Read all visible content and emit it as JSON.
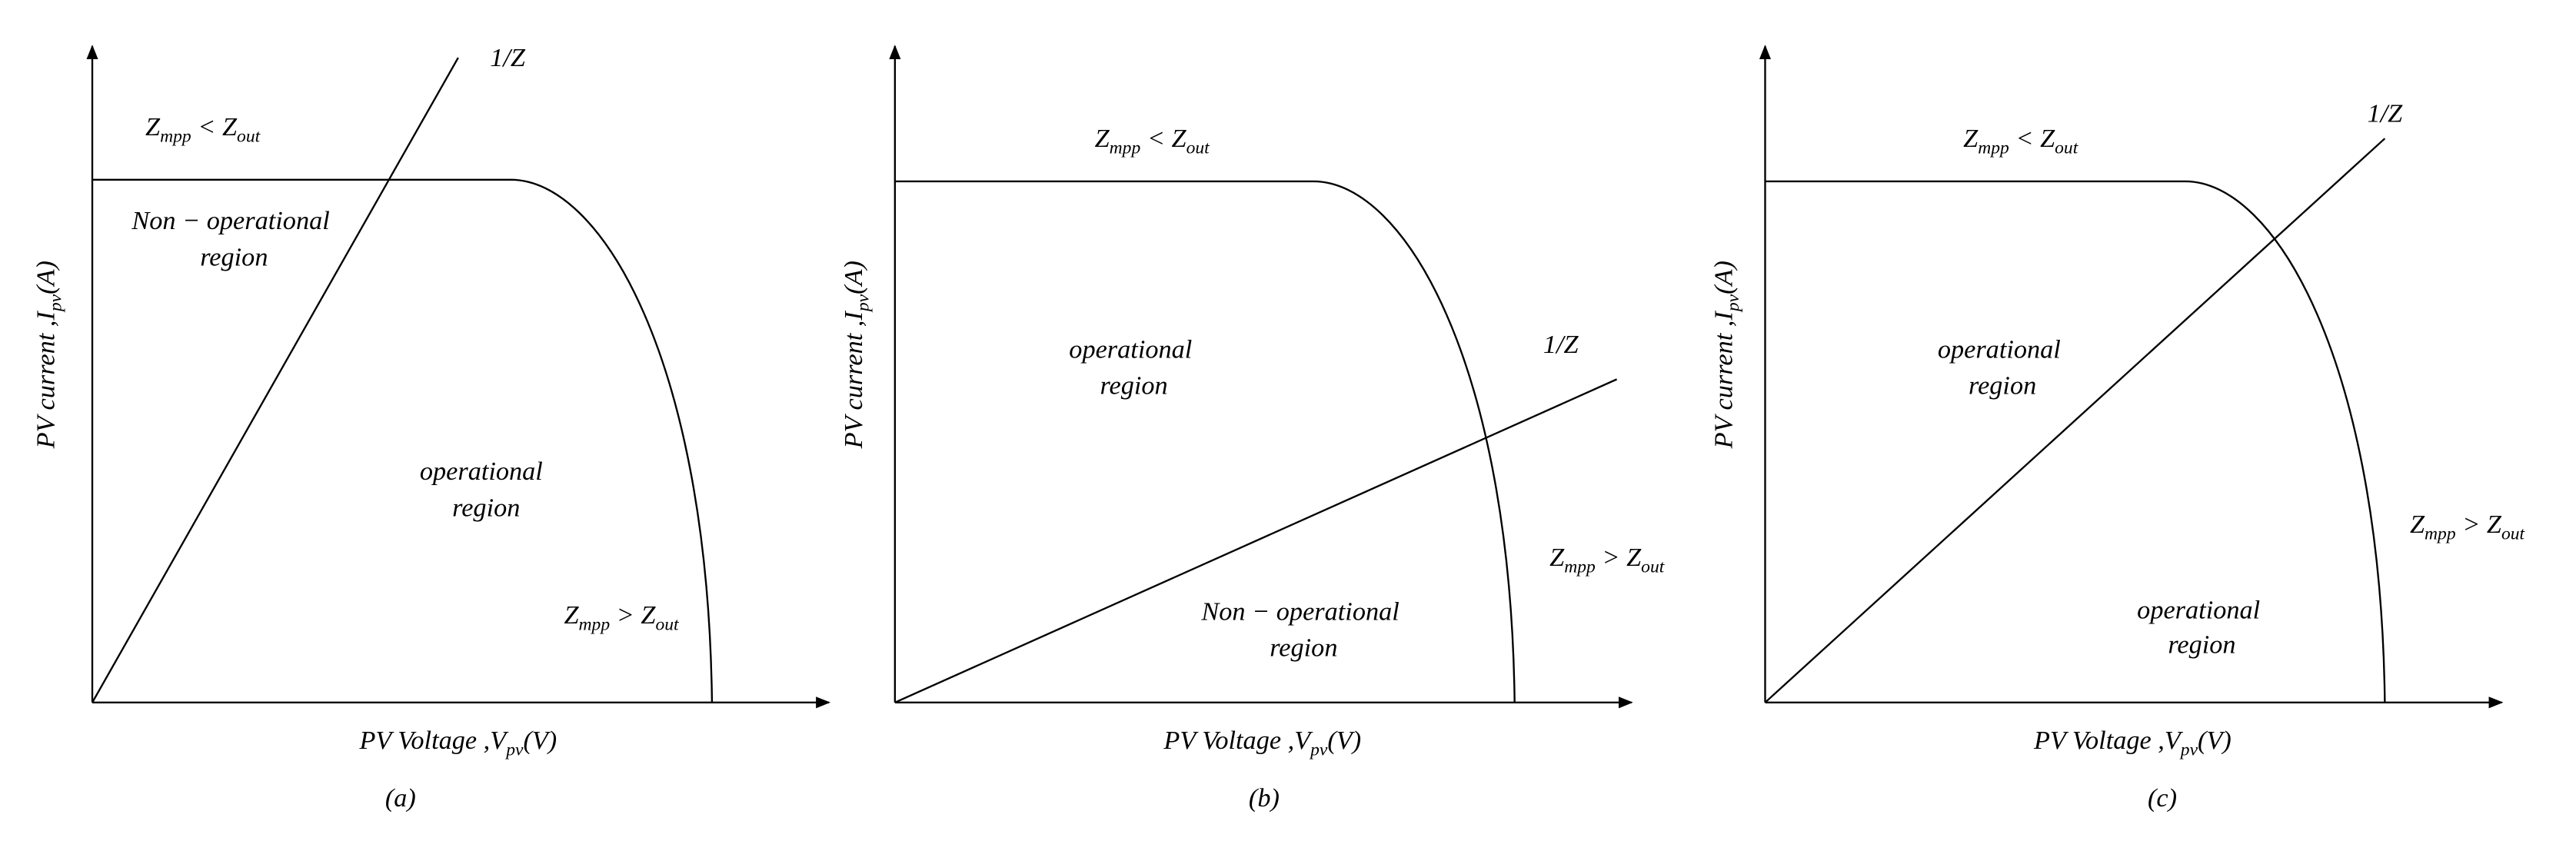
{
  "panels": [
    {
      "caption": "(a)",
      "x_label": [
        "PV Voltage ,V",
        "pv",
        "(V)"
      ],
      "y_label": [
        "PV current ,I",
        "pv",
        "(A)"
      ],
      "labels": [
        [
          "1/Z"
        ],
        [
          "Z",
          "mpp",
          " < Z",
          "out"
        ],
        [
          "Non − operational"
        ],
        [
          "region"
        ],
        [
          "operational"
        ],
        [
          "region"
        ],
        [
          "Z",
          "mpp",
          " > Z",
          "out"
        ]
      ]
    },
    {
      "caption": "(b)",
      "x_label": [
        "PV Voltage ,V",
        "pv",
        "(V)"
      ],
      "y_label": [
        "PV current ,I",
        "pv",
        "(A)"
      ],
      "labels": [
        [
          "1/Z"
        ],
        [
          "Z",
          "mpp",
          " < Z",
          "out"
        ],
        [
          "operational"
        ],
        [
          "region"
        ],
        [
          "Non − operational"
        ],
        [
          "region"
        ],
        [
          "Z",
          "mpp",
          " > Z",
          "out"
        ]
      ]
    },
    {
      "caption": "(c)",
      "x_label": [
        "PV Voltage ,V",
        "pv",
        "(V)"
      ],
      "y_label": [
        "PV current ,I",
        "pv",
        "(A)"
      ],
      "labels": [
        [
          "1/Z"
        ],
        [
          "Z",
          "mpp",
          " < Z",
          "out"
        ],
        [
          "operational"
        ],
        [
          "region"
        ],
        [
          "Z",
          "mpp",
          " > Z",
          "out"
        ],
        [
          "operational"
        ],
        [
          "region"
        ]
      ]
    }
  ]
}
